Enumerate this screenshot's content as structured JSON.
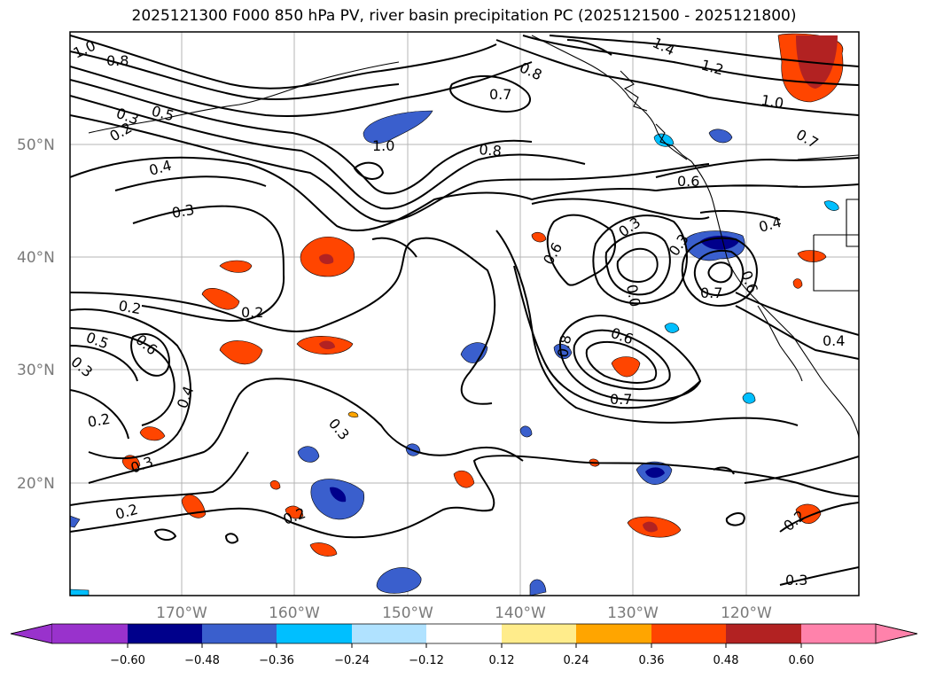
{
  "title": "2025121300 F000 850 hPa PV, river basin precipitation PC (2025121500 - 2025121800)",
  "latitude_labels": [
    "50°N",
    "40°N",
    "30°N",
    "20°N"
  ],
  "longitude_labels": [
    "170°W",
    "160°W",
    "150°W",
    "140°W",
    "130°W",
    "120°W"
  ],
  "pv_contour_labels": [
    "1.0",
    "0.8",
    "0.8",
    "1.4",
    "1.2",
    "1.0",
    "0.7",
    "0.7",
    "0.3",
    "0.2",
    "0.5",
    "0.4",
    "0.3",
    "1.0",
    "0.8",
    "0.6",
    "0.4",
    "0.3",
    "0.6",
    "0.0",
    "0.3",
    "0.7",
    "0.6",
    "0.2",
    "0.2",
    "0.5",
    "0.6",
    "0.3",
    "0.4",
    "0.2",
    "0.8",
    "0.6",
    "0.7",
    "0.3",
    "0.3",
    "0.2",
    "0.2",
    "0.4",
    "0.2",
    "0.3"
  ],
  "colorbar": {
    "ticks": [
      "−0.60",
      "−0.48",
      "−0.36",
      "−0.24",
      "−0.12",
      "0.12",
      "0.24",
      "0.36",
      "0.48",
      "0.60"
    ],
    "colors": [
      "#9932cc",
      "#00008b",
      "#3a5fcd",
      "#00bfff",
      "#b0e2ff",
      "#ffffff",
      "#ffec8b",
      "#ffa500",
      "#ff4500",
      "#b22222",
      "#ff82ab"
    ]
  },
  "shading_colors": {
    "neg_strong": "#00008b",
    "neg_mid": "#3a5fcd",
    "neg_weak": "#00bfff",
    "pos_weak": "#ffa500",
    "pos_mid": "#ff4500",
    "pos_strong": "#b22222",
    "pos_faint": "#ffec8b"
  }
}
